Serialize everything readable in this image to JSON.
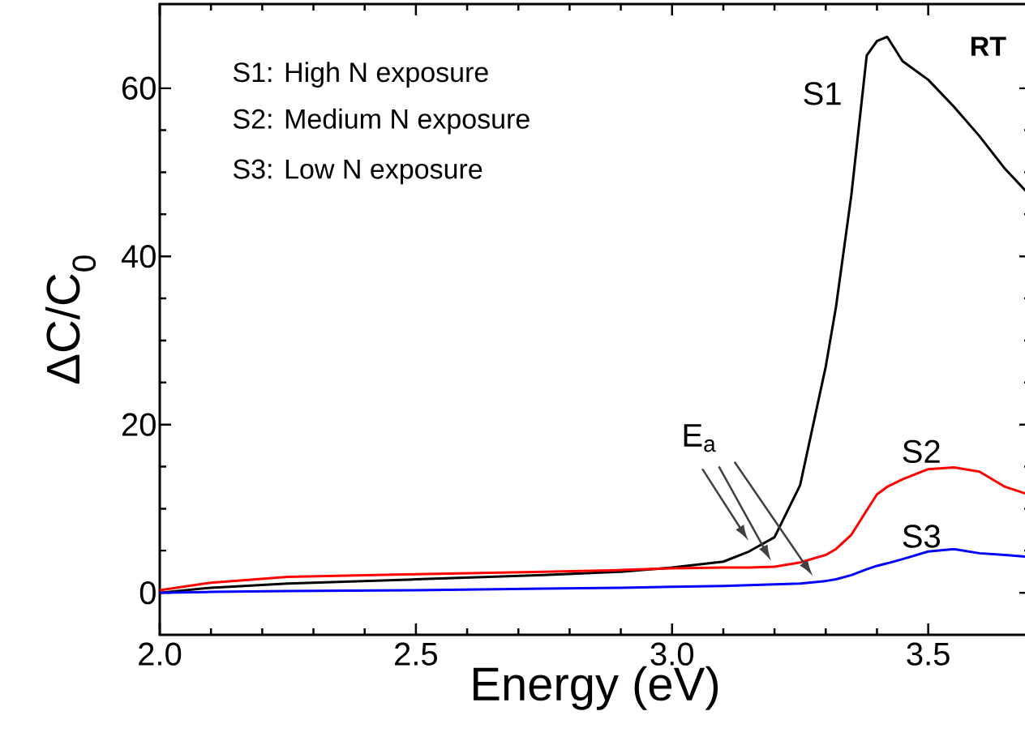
{
  "chart_data": {
    "type": "line",
    "xlabel": "Energy (eV)",
    "ylabel": "ΔC/C$_{0}$",
    "xlim": [
      2.0,
      3.7
    ],
    "ylim": [
      -5,
      70
    ],
    "xticks": [
      {
        "value": 2.0,
        "label": "2.0"
      },
      {
        "value": 2.5,
        "label": "2.5"
      },
      {
        "value": 3.0,
        "label": "3.0"
      },
      {
        "value": 3.5,
        "label": "3.5"
      }
    ],
    "yticks": [
      0,
      20,
      40,
      60
    ],
    "x": [
      2.0,
      2.1,
      2.25,
      2.5,
      2.75,
      2.9,
      3.0,
      3.1,
      3.15,
      3.2,
      3.25,
      3.3,
      3.32,
      3.35,
      3.38,
      3.4,
      3.42,
      3.45,
      3.5,
      3.55,
      3.6,
      3.65,
      3.69
    ],
    "series": [
      {
        "name": "S1",
        "color": "#000000",
        "values": [
          0,
          0.6,
          1.1,
          1.6,
          2.1,
          2.5,
          3.0,
          3.7,
          4.9,
          6.6,
          12.8,
          26.9,
          34.0,
          47.3,
          63.9,
          65.6,
          66.1,
          63.2,
          61.0,
          57.8,
          54.3,
          50.4,
          47.8
        ]
      },
      {
        "name": "S2",
        "color": "#ff0000",
        "values": [
          0.3,
          1.2,
          1.9,
          2.2,
          2.5,
          2.7,
          2.9,
          3.0,
          3.0,
          3.1,
          3.6,
          4.5,
          5.2,
          6.9,
          9.8,
          11.7,
          12.6,
          13.5,
          14.7,
          14.9,
          14.4,
          12.6,
          11.8
        ]
      },
      {
        "name": "S3",
        "color": "#0000ff",
        "values": [
          0,
          0.1,
          0.2,
          0.3,
          0.5,
          0.6,
          0.7,
          0.8,
          0.9,
          1.0,
          1.1,
          1.4,
          1.6,
          2.1,
          2.8,
          3.2,
          3.5,
          4.0,
          4.9,
          5.2,
          4.7,
          4.5,
          4.3
        ]
      }
    ],
    "annotations": [
      "S1: High N exposure",
      "S2: Medium N exposure",
      "S3: Low N exposure",
      "RT",
      "E$_{a}$"
    ],
    "marker": "none",
    "line_style": "solid",
    "grid": false,
    "legend": false
  }
}
